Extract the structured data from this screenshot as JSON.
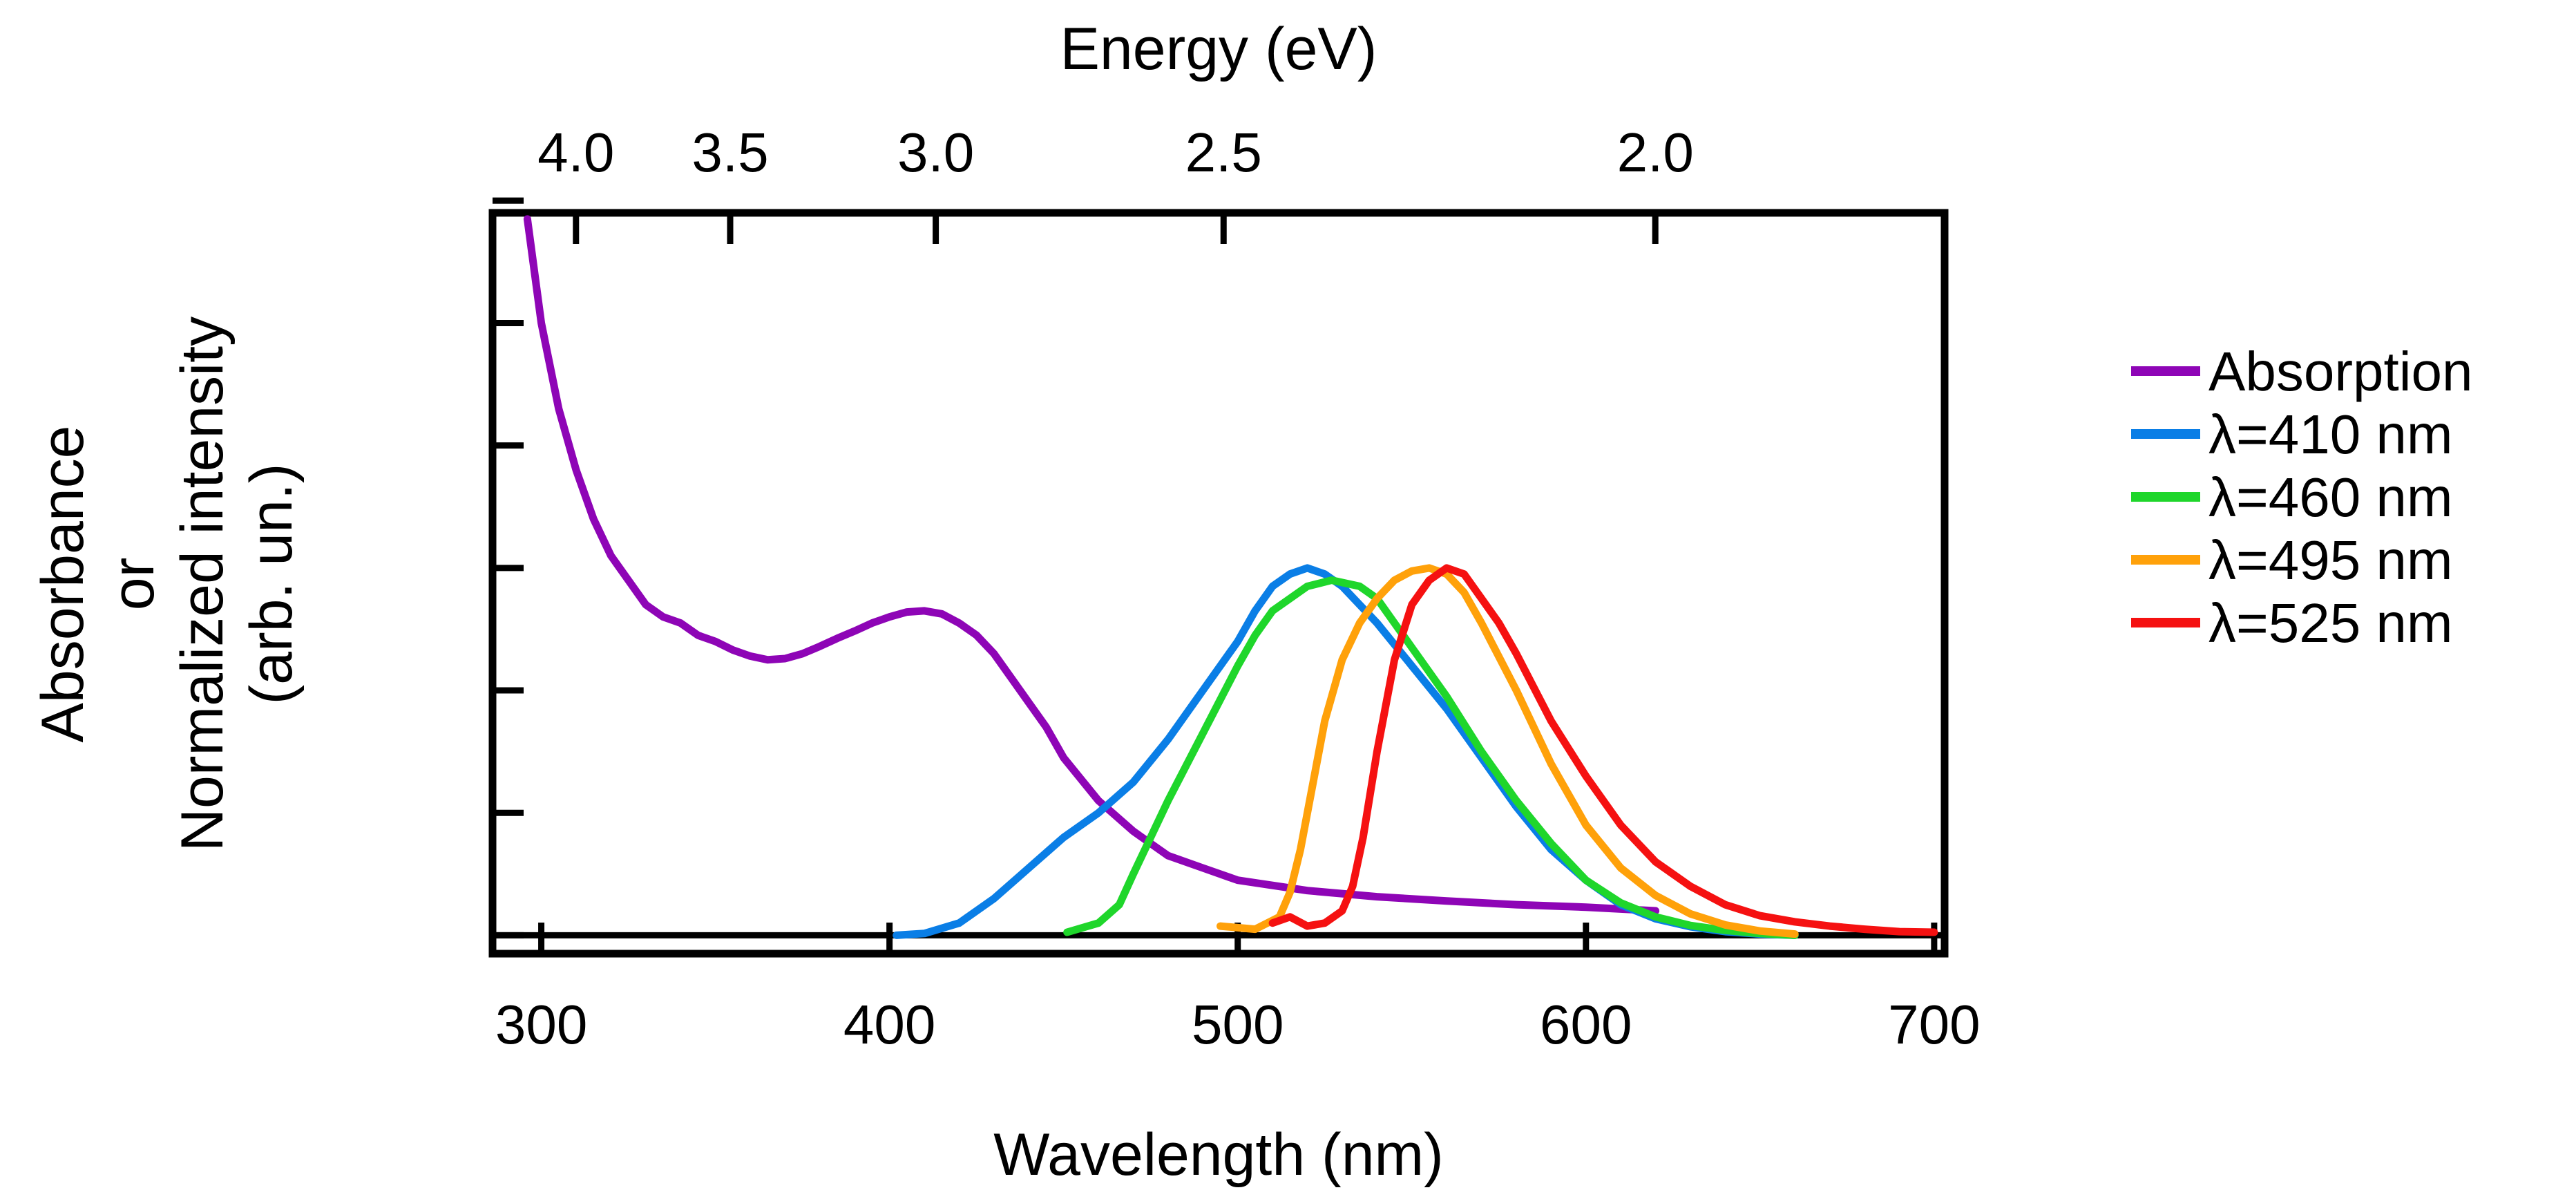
{
  "chart_data": {
    "type": "line",
    "xlabel": "Wavelength (nm)",
    "x2label": "Energy (eV)",
    "ylabel_lines": [
      "Absorbance",
      "or",
      "Normalized intensity",
      "(arb. un.)"
    ],
    "xlim": [
      286,
      703
    ],
    "ylim": [
      -0.03,
      1.18
    ],
    "x_ticks": [
      300,
      400,
      500,
      600,
      700
    ],
    "x2_ticks": [
      4.0,
      3.5,
      3.0,
      2.5,
      2.0
    ],
    "y_tick_count": 7,
    "legend_position": "right",
    "series": [
      {
        "name": "Absorption",
        "color": "#8e05b6",
        "x": [
          296,
          300,
          305,
          310,
          315,
          320,
          325,
          330,
          335,
          340,
          345,
          350,
          355,
          360,
          365,
          370,
          375,
          380,
          385,
          390,
          395,
          400,
          405,
          410,
          415,
          420,
          425,
          430,
          435,
          440,
          445,
          450,
          460,
          470,
          480,
          490,
          500,
          520,
          540,
          560,
          580,
          600,
          620
        ],
        "y": [
          1.17,
          1.0,
          0.86,
          0.76,
          0.68,
          0.62,
          0.58,
          0.54,
          0.52,
          0.51,
          0.49,
          0.48,
          0.466,
          0.456,
          0.45,
          0.452,
          0.46,
          0.472,
          0.485,
          0.497,
          0.51,
          0.52,
          0.528,
          0.53,
          0.525,
          0.51,
          0.49,
          0.46,
          0.42,
          0.38,
          0.34,
          0.29,
          0.22,
          0.17,
          0.13,
          0.11,
          0.09,
          0.073,
          0.063,
          0.056,
          0.05,
          0.046,
          0.04
        ]
      },
      {
        "name": "λ=410 nm",
        "color": "#0a7ee6",
        "x": [
          402,
          410,
          420,
          430,
          440,
          450,
          460,
          470,
          480,
          490,
          500,
          505,
          510,
          515,
          520,
          525,
          530,
          540,
          550,
          560,
          570,
          580,
          590,
          600,
          610,
          620,
          630,
          640,
          650,
          660
        ],
        "y": [
          0,
          0.003,
          0.02,
          0.06,
          0.11,
          0.16,
          0.2,
          0.25,
          0.32,
          0.4,
          0.48,
          0.53,
          0.57,
          0.59,
          0.6,
          0.59,
          0.57,
          0.51,
          0.44,
          0.37,
          0.29,
          0.21,
          0.14,
          0.09,
          0.05,
          0.027,
          0.014,
          0.006,
          0.002,
          0
        ]
      },
      {
        "name": "λ=460 nm",
        "color": "#1fd62b",
        "x": [
          451,
          460,
          466,
          470,
          475,
          480,
          490,
          500,
          505,
          510,
          520,
          527,
          535,
          540,
          550,
          560,
          570,
          580,
          590,
          600,
          610,
          620,
          630,
          640,
          650,
          660
        ],
        "y": [
          0.005,
          0.02,
          0.05,
          0.1,
          0.16,
          0.22,
          0.33,
          0.44,
          0.49,
          0.53,
          0.57,
          0.58,
          0.57,
          0.55,
          0.47,
          0.39,
          0.3,
          0.22,
          0.15,
          0.09,
          0.053,
          0.03,
          0.016,
          0.008,
          0.003,
          0
        ]
      },
      {
        "name": "λ=495 nm",
        "color": "#ffa10a",
        "x": [
          495,
          505,
          512,
          515,
          518,
          522,
          525,
          530,
          535,
          540,
          545,
          550,
          555,
          560,
          565,
          570,
          580,
          590,
          600,
          610,
          620,
          630,
          640,
          650,
          660
        ],
        "y": [
          0.015,
          0.01,
          0.03,
          0.07,
          0.14,
          0.26,
          0.35,
          0.45,
          0.51,
          0.55,
          0.58,
          0.595,
          0.6,
          0.59,
          0.56,
          0.51,
          0.4,
          0.28,
          0.18,
          0.11,
          0.065,
          0.035,
          0.017,
          0.007,
          0.002
        ]
      },
      {
        "name": "λ=525 nm",
        "color": "#f51111",
        "x": [
          510,
          515,
          520,
          525,
          530,
          533,
          536,
          540,
          545,
          550,
          555,
          560,
          565,
          570,
          575,
          580,
          590,
          600,
          610,
          620,
          630,
          640,
          650,
          660,
          670,
          680,
          690,
          700
        ],
        "y": [
          0.02,
          0.03,
          0.015,
          0.02,
          0.04,
          0.08,
          0.16,
          0.3,
          0.45,
          0.54,
          0.58,
          0.6,
          0.59,
          0.55,
          0.51,
          0.46,
          0.35,
          0.26,
          0.18,
          0.12,
          0.08,
          0.05,
          0.032,
          0.022,
          0.015,
          0.01,
          0.006,
          0.005
        ]
      }
    ]
  }
}
